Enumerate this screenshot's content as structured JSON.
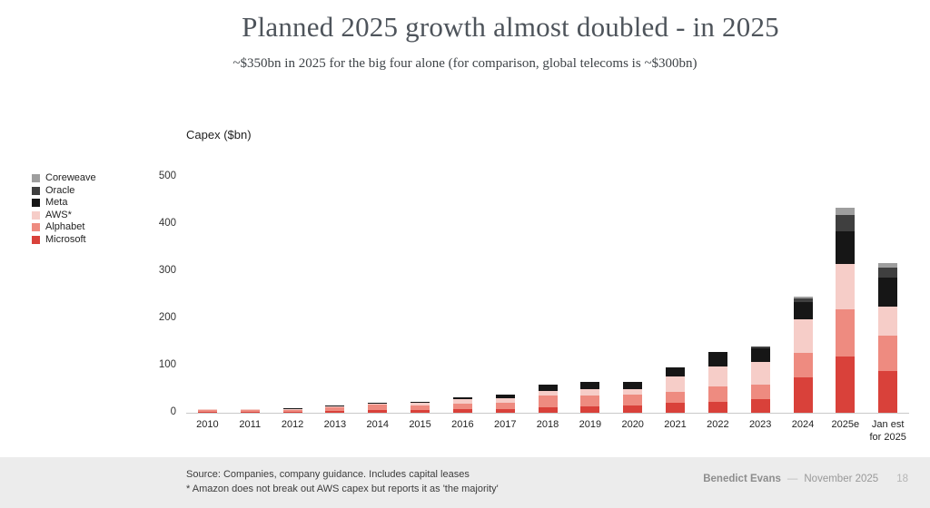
{
  "header": {
    "title": "Planned 2025 growth almost doubled - in 2025",
    "subtitle": "~$350bn in 2025 for the big four alone (for comparison, global telecoms is ~$300bn)"
  },
  "chart_data": {
    "type": "bar",
    "stacked": true,
    "title": "Capex ($bn)",
    "xlabel": "",
    "ylabel": "Capex ($bn)",
    "ylim": [
      0,
      500
    ],
    "yticks": [
      0,
      100,
      200,
      300,
      400,
      500
    ],
    "grid": false,
    "legend_position": "left",
    "categories": [
      "2010",
      "2011",
      "2012",
      "2013",
      "2014",
      "2015",
      "2016",
      "2017",
      "2018",
      "2019",
      "2020",
      "2021",
      "2022",
      "2023",
      "2024",
      "2025e",
      "Jan est\nfor 2025"
    ],
    "series": [
      {
        "name": "Microsoft",
        "color": "#d9413a",
        "values": [
          2,
          2.4,
          2.9,
          4.3,
          5.5,
          5.9,
          8.3,
          8.1,
          11.6,
          13.9,
          15.4,
          20.6,
          23.9,
          28.1,
          75,
          120,
          88
        ]
      },
      {
        "name": "Alphabet",
        "color": "#ee8b80",
        "values": [
          4,
          3.4,
          3.3,
          7.4,
          11,
          9.9,
          10.2,
          13.2,
          25.1,
          23.5,
          22.3,
          24.6,
          31.5,
          32.3,
          52.5,
          100,
          75
        ]
      },
      {
        "name": "AWS*",
        "color": "#f6cdc8",
        "values": [
          0.8,
          1.5,
          1.9,
          2.5,
          3,
          4.6,
          10,
          10,
          9.5,
          12,
          12,
          32,
          42,
          48,
          70,
          95,
          62
        ]
      },
      {
        "name": "Meta",
        "color": "#161616",
        "values": [
          0.3,
          0.6,
          1.2,
          1.4,
          1.8,
          2.5,
          4.5,
          6.7,
          13.9,
          15.1,
          15.7,
          18.6,
          31.4,
          27.3,
          37.3,
          70,
          62
        ]
      },
      {
        "name": "Oracle",
        "color": "#3f3f3f",
        "values": [
          0,
          0,
          0,
          0,
          0,
          0,
          0,
          0,
          0,
          0,
          0,
          0,
          0,
          4,
          8,
          35,
          21
        ]
      },
      {
        "name": "Coreweave",
        "color": "#9e9e9e",
        "values": [
          0,
          0,
          0,
          0,
          0,
          0,
          0,
          0,
          0,
          0,
          0,
          0,
          0,
          1,
          3,
          15,
          10
        ]
      }
    ],
    "legend_order": [
      "Coreweave",
      "Oracle",
      "Meta",
      "AWS*",
      "Alphabet",
      "Microsoft"
    ]
  },
  "footer": {
    "source_line1": "Source: Companies, company guidance. Includes capital leases",
    "source_line2": "* Amazon does not break out AWS capex but reports it as 'the majority'",
    "author": "Benedict Evans",
    "separator": "—",
    "date": "November 2025",
    "page": "18"
  }
}
